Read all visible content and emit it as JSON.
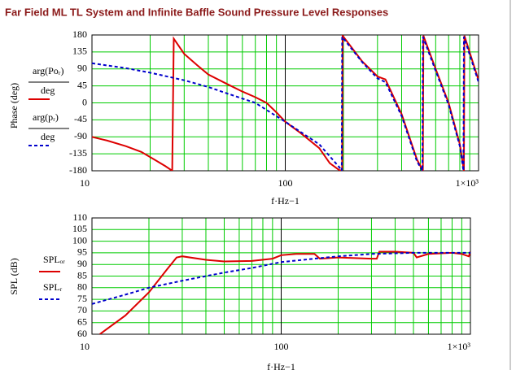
{
  "title": "Far Field ML TL System and Infinite Baffle Sound Pressure Level Responses",
  "chart_data": [
    {
      "type": "line",
      "y_label": "Phase (deg)",
      "x_label": "f·Hz−1",
      "log_x": true,
      "grid": true,
      "grid_color": "#00cc00",
      "xlim": [
        10,
        1000
      ],
      "xticks": [
        10,
        100,
        {
          "value": 1000,
          "label": "1×10³"
        }
      ],
      "ylim": [
        -180,
        180
      ],
      "yticks": [
        180,
        135,
        90,
        45,
        0,
        -45,
        -90,
        -135,
        -180
      ],
      "series": [
        {
          "name": "arg(Poᵣ)",
          "denominator": "deg",
          "color": "#dd0000",
          "dash": false,
          "x": [
            10,
            12,
            15,
            18,
            21,
            24,
            26,
            26.5,
            30,
            35,
            40,
            50,
            60,
            70,
            80,
            90,
            100,
            120,
            150,
            170,
            190,
            197,
            198,
            250,
            300,
            330,
            400,
            480,
            515,
            518,
            600,
            700,
            800,
            840,
            845,
            1000
          ],
          "values": [
            -90,
            -100,
            -115,
            -130,
            -150,
            -168,
            -180,
            170,
            130,
            100,
            75,
            50,
            30,
            15,
            0,
            -25,
            -50,
            -80,
            -120,
            -160,
            -178,
            -180,
            178,
            110,
            70,
            62,
            -30,
            -150,
            -180,
            178,
            90,
            0,
            -110,
            -180,
            178,
            60
          ]
        },
        {
          "name": "arg(pᵣ)",
          "denominator": "deg",
          "color": "#0000cc",
          "dash": true,
          "x": [
            10,
            15,
            20,
            30,
            40,
            50,
            70,
            100,
            150,
            190,
            196,
            197,
            250,
            300,
            330,
            400,
            480,
            512,
            515,
            600,
            700,
            800,
            835,
            840,
            1000
          ],
          "values": [
            105,
            92,
            80,
            60,
            42,
            25,
            0,
            -50,
            -110,
            -170,
            -180,
            175,
            108,
            65,
            55,
            -35,
            -155,
            -180,
            175,
            85,
            -5,
            -115,
            -180,
            175,
            55
          ]
        }
      ]
    },
    {
      "type": "line",
      "y_label": "SPL (dB)",
      "x_label": "f·Hz−1",
      "log_x": true,
      "grid": true,
      "grid_color": "#00cc00",
      "xlim": [
        10,
        1000
      ],
      "xticks": [
        10,
        100,
        {
          "value": 1000,
          "label": "1×10³"
        }
      ],
      "ylim": [
        60,
        110
      ],
      "yticks": [
        110,
        105,
        100,
        95,
        90,
        85,
        80,
        75,
        70,
        65,
        60
      ],
      "series": [
        {
          "name": "SPLₒᵣ",
          "color": "#dd0000",
          "dash": false,
          "x": [
            11,
            15,
            20,
            25,
            28,
            30,
            40,
            50,
            70,
            90,
            100,
            120,
            150,
            160,
            200,
            300,
            320,
            330,
            400,
            500,
            520,
            600,
            800,
            900,
            980,
            1000
          ],
          "values": [
            60,
            68,
            78,
            88,
            93,
            93.5,
            92,
            91.3,
            91.5,
            92.5,
            94,
            94.5,
            94.5,
            92.5,
            93,
            92.5,
            92.5,
            95.5,
            95.5,
            95,
            93,
            94.5,
            95,
            94.5,
            93.5,
            95.5
          ]
        },
        {
          "name": "SPLᵣ",
          "color": "#0000cc",
          "dash": true,
          "x": [
            10,
            15,
            20,
            30,
            50,
            70,
            100,
            150,
            200,
            300,
            500,
            1000
          ],
          "values": [
            73,
            77,
            80,
            83,
            86.5,
            88.5,
            91,
            92.5,
            93.5,
            94.5,
            95,
            95
          ]
        }
      ]
    }
  ]
}
